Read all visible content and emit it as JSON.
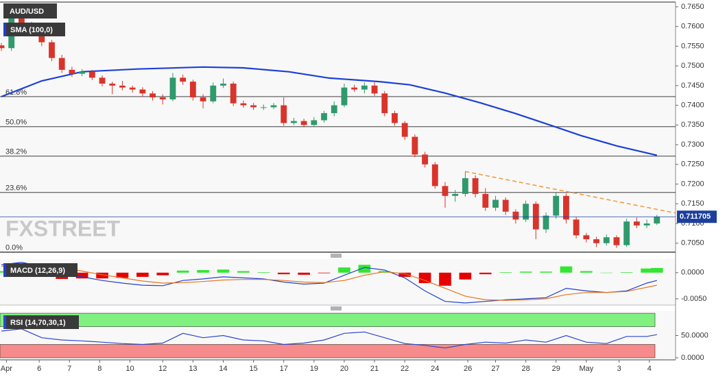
{
  "chart_data": [
    {
      "type": "candlestick",
      "title": "AUD/USD",
      "x": [
        0,
        2,
        4,
        6,
        8,
        10,
        12,
        14,
        16,
        18,
        20,
        22,
        24,
        26,
        28,
        30,
        32,
        34,
        36,
        38,
        40,
        42,
        44,
        46,
        48,
        50,
        52,
        54,
        56,
        58,
        60,
        62,
        64,
        66,
        68,
        70,
        72,
        74,
        76,
        78,
        80,
        82,
        84,
        86,
        88,
        90,
        92,
        94,
        96,
        98,
        100,
        102,
        104,
        106,
        108,
        110,
        112,
        114,
        116,
        118,
        120,
        122,
        124,
        126,
        128,
        130
      ],
      "open": [
        0.7552,
        0.7545,
        0.764,
        0.76,
        0.7585,
        0.756,
        0.752,
        0.749,
        0.748,
        0.7485,
        0.747,
        0.7455,
        0.745,
        0.7445,
        0.744,
        0.743,
        0.742,
        0.7415,
        0.747,
        0.746,
        0.742,
        0.741,
        0.745,
        0.7455,
        0.7405,
        0.74,
        0.7395,
        0.7395,
        0.74,
        0.7355,
        0.736,
        0.735,
        0.7362,
        0.738,
        0.74,
        0.7445,
        0.744,
        0.745,
        0.743,
        0.738,
        0.7355,
        0.732,
        0.7275,
        0.725,
        0.7195,
        0.717,
        0.7175,
        0.7215,
        0.7175,
        0.714,
        0.716,
        0.713,
        0.711,
        0.715,
        0.7085,
        0.712,
        0.717,
        0.711,
        0.707,
        0.706,
        0.705,
        0.7065,
        0.7045,
        0.7105,
        0.7095,
        0.71
      ],
      "high": [
        0.7558,
        0.7655,
        0.7648,
        0.7612,
        0.7592,
        0.7566,
        0.7528,
        0.7498,
        0.7492,
        0.749,
        0.7476,
        0.746,
        0.7462,
        0.745,
        0.7446,
        0.7436,
        0.7428,
        0.7482,
        0.7478,
        0.7465,
        0.7428,
        0.7458,
        0.7468,
        0.746,
        0.7412,
        0.7406,
        0.7402,
        0.7406,
        0.742,
        0.7368,
        0.7366,
        0.737,
        0.7386,
        0.741,
        0.7455,
        0.7452,
        0.7458,
        0.7458,
        0.7436,
        0.7386,
        0.736,
        0.7326,
        0.7282,
        0.7256,
        0.7205,
        0.7185,
        0.7232,
        0.7222,
        0.719,
        0.717,
        0.7166,
        0.7136,
        0.7158,
        0.7156,
        0.7128,
        0.7178,
        0.7176,
        0.7116,
        0.7076,
        0.7066,
        0.7072,
        0.707,
        0.7112,
        0.7115,
        0.711,
        0.7122
      ],
      "low": [
        0.7538,
        0.7538,
        0.7592,
        0.7575,
        0.755,
        0.7512,
        0.7482,
        0.7472,
        0.7474,
        0.7464,
        0.7448,
        0.7428,
        0.7438,
        0.7432,
        0.7422,
        0.7412,
        0.7402,
        0.741,
        0.7452,
        0.7412,
        0.7392,
        0.7405,
        0.7444,
        0.7398,
        0.7394,
        0.7388,
        0.7388,
        0.739,
        0.7348,
        0.735,
        0.7344,
        0.7345,
        0.7356,
        0.7372,
        0.7395,
        0.7434,
        0.743,
        0.7424,
        0.7372,
        0.7348,
        0.7312,
        0.7268,
        0.7242,
        0.7188,
        0.714,
        0.7155,
        0.7168,
        0.7166,
        0.7132,
        0.7132,
        0.7122,
        0.71,
        0.7104,
        0.706,
        0.7076,
        0.7112,
        0.71,
        0.7062,
        0.7052,
        0.704,
        0.7044,
        0.7038,
        0.704,
        0.7088,
        0.7088,
        0.7096
      ],
      "close": [
        0.7545,
        0.764,
        0.76,
        0.7585,
        0.756,
        0.752,
        0.749,
        0.748,
        0.7485,
        0.747,
        0.7455,
        0.745,
        0.7445,
        0.744,
        0.743,
        0.742,
        0.7415,
        0.747,
        0.746,
        0.742,
        0.741,
        0.745,
        0.7455,
        0.7405,
        0.74,
        0.7395,
        0.7395,
        0.74,
        0.7355,
        0.736,
        0.735,
        0.7362,
        0.738,
        0.74,
        0.7445,
        0.744,
        0.745,
        0.743,
        0.738,
        0.7355,
        0.732,
        0.7275,
        0.725,
        0.7195,
        0.717,
        0.7175,
        0.7215,
        0.7175,
        0.714,
        0.716,
        0.713,
        0.711,
        0.715,
        0.7085,
        0.712,
        0.717,
        0.711,
        0.707,
        0.706,
        0.705,
        0.7065,
        0.7045,
        0.7105,
        0.7095,
        0.71,
        0.7117
      ],
      "up_color": "#2f9a6c",
      "down_color": "#d9342b",
      "xlim": [
        -0.27,
        133.7
      ],
      "xticks": [
        {
          "value": 1,
          "label": "Apr"
        },
        {
          "value": 7.5,
          "label": "6"
        },
        {
          "value": 13.5,
          "label": "7"
        },
        {
          "value": 19.5,
          "label": "8"
        },
        {
          "value": 25.5,
          "label": "10"
        },
        {
          "value": 32,
          "label": "12"
        },
        {
          "value": 38,
          "label": "13"
        },
        {
          "value": 44,
          "label": "14"
        },
        {
          "value": 50,
          "label": "15"
        },
        {
          "value": 56,
          "label": "17"
        },
        {
          "value": 62,
          "label": "19"
        },
        {
          "value": 68,
          "label": "20"
        },
        {
          "value": 74,
          "label": "21"
        },
        {
          "value": 80,
          "label": "22"
        },
        {
          "value": 86,
          "label": "24"
        },
        {
          "value": 92.5,
          "label": "26"
        },
        {
          "value": 98,
          "label": "27"
        },
        {
          "value": 104,
          "label": "28"
        },
        {
          "value": 110,
          "label": "29"
        },
        {
          "value": 116,
          "label": "May"
        },
        {
          "value": 122.5,
          "label": "3"
        },
        {
          "value": 128.5,
          "label": "4"
        }
      ],
      "ylim": [
        0.7027,
        0.7662
      ],
      "yticks": [
        {
          "value": 0.765,
          "label": "0.7650"
        },
        {
          "value": 0.76,
          "label": "0.7600"
        },
        {
          "value": 0.755,
          "label": "0.7550"
        },
        {
          "value": 0.75,
          "label": "0.7500"
        },
        {
          "value": 0.745,
          "label": "0.7450"
        },
        {
          "value": 0.74,
          "label": "0.7400"
        },
        {
          "value": 0.735,
          "label": "0.7350"
        },
        {
          "value": 0.73,
          "label": "0.7300"
        },
        {
          "value": 0.725,
          "label": "0.7250"
        },
        {
          "value": 0.72,
          "label": "0.7200"
        },
        {
          "value": 0.715,
          "label": "0.7150"
        },
        {
          "value": 0.71,
          "label": "0.7100"
        },
        {
          "value": 0.705,
          "label": "0.7050"
        }
      ],
      "overlays": [
        {
          "name": "SMA (100,0)",
          "type": "line",
          "color": "#1c3fd8",
          "x": [
            0,
            8,
            16,
            27,
            40,
            48,
            57,
            65,
            75,
            81,
            88,
            95,
            102,
            109,
            115,
            122,
            130
          ],
          "values": [
            0.7422,
            0.7462,
            0.7485,
            0.7492,
            0.7497,
            0.7495,
            0.7485,
            0.7469,
            0.746,
            0.7452,
            0.7431,
            0.7406,
            0.7379,
            0.7349,
            0.7323,
            0.7297,
            0.7273
          ]
        },
        {
          "type": "trendline",
          "color": "#f59a3c",
          "dashed": true,
          "x": [
            92,
            133.7
          ],
          "values": [
            0.7232,
            0.71265
          ]
        }
      ],
      "levels": [
        {
          "label": "61.8%",
          "value": 0.7422
        },
        {
          "label": "50.0%",
          "value": 0.73457
        },
        {
          "label": "38.2%",
          "value": 0.72709
        },
        {
          "label": "23.6%",
          "value": 0.71787
        },
        {
          "label": "0.0%",
          "value": 0.70277
        }
      ],
      "last_price": 0.711705,
      "last_price_color": "#1c3f9e",
      "watermark": "FXSTREET"
    },
    {
      "type": "macd",
      "title": "MACD (12,26,9)",
      "x": [
        0,
        4,
        8,
        12,
        16,
        20,
        24,
        28,
        32,
        36,
        40,
        44,
        48,
        52,
        56,
        60,
        64,
        68,
        72,
        76,
        80,
        84,
        88,
        92,
        96,
        100,
        104,
        108,
        112,
        116,
        120,
        124,
        128,
        130
      ],
      "macd": [
        0.0015,
        0.002,
        0.0012,
        -0.0002,
        -0.0008,
        -0.0015,
        -0.002,
        -0.0024,
        -0.0025,
        -0.0015,
        -0.0012,
        -0.0008,
        -0.001,
        -0.0012,
        -0.0018,
        -0.0022,
        -0.002,
        -0.0005,
        0.001,
        0.0005,
        -0.001,
        -0.0035,
        -0.0055,
        -0.0058,
        -0.0055,
        -0.0052,
        -0.005,
        -0.0048,
        -0.003,
        -0.0035,
        -0.0038,
        -0.0035,
        -0.002,
        -0.0015
      ],
      "signal": [
        0.0012,
        0.0016,
        0.0016,
        0.001,
        0.0003,
        -0.0004,
        -0.001,
        -0.0016,
        -0.002,
        -0.0019,
        -0.0017,
        -0.0014,
        -0.0013,
        -0.0013,
        -0.0015,
        -0.0018,
        -0.0019,
        -0.0015,
        -0.0005,
        0.0002,
        -0.0002,
        -0.0015,
        -0.003,
        -0.0045,
        -0.0052,
        -0.0053,
        -0.0052,
        -0.005,
        -0.0042,
        -0.0038,
        -0.0038,
        -0.0036,
        -0.0028,
        -0.0024
      ],
      "histogram": [
        0.0003,
        0.0004,
        -0.0004,
        -0.0012,
        -0.0011,
        -0.0011,
        -0.001,
        -0.0008,
        -0.0005,
        0.0004,
        0.0005,
        0.0006,
        0.0003,
        0.0001,
        -0.0003,
        -0.0004,
        -0.0001,
        0.001,
        0.0015,
        0.0003,
        -0.0008,
        -0.002,
        -0.0025,
        -0.0013,
        -0.0003,
        0.0001,
        0.0002,
        0.0002,
        0.0012,
        0.0003,
        0,
        0.0001,
        0.0008,
        0.0009
      ],
      "macd_color": "#2040d0",
      "signal_color": "#e8741c",
      "up_color": "#33e633",
      "down_color": "#e60000",
      "ylim": [
        -0.0062,
        0.0026
      ],
      "yticks": [
        {
          "value": 0,
          "label": "0.0000"
        },
        {
          "value": -0.005,
          "label": "-0.0050"
        }
      ]
    },
    {
      "type": "rsi",
      "title": "RSI (14,70,30,1)",
      "x": [
        0,
        4,
        8,
        12,
        16,
        20,
        24,
        28,
        32,
        36,
        40,
        44,
        48,
        52,
        56,
        60,
        64,
        68,
        72,
        76,
        80,
        84,
        88,
        92,
        96,
        100,
        104,
        108,
        112,
        116,
        120,
        124,
        128,
        130
      ],
      "values": [
        60,
        65,
        45,
        40,
        38,
        35,
        32,
        30,
        33,
        55,
        45,
        50,
        40,
        38,
        30,
        33,
        40,
        55,
        58,
        45,
        32,
        28,
        22,
        30,
        35,
        33,
        40,
        35,
        50,
        35,
        32,
        48,
        48,
        52
      ],
      "color": "#2a45d4",
      "ylim": [
        -4.7,
        104.7
      ],
      "yticks": [
        {
          "value": 0,
          "label": "0.0000"
        },
        {
          "value": 50,
          "label": "50.0000"
        }
      ],
      "zones": [
        {
          "from": 70,
          "to": 100,
          "color": "#80f080"
        },
        {
          "from": 0,
          "to": 30,
          "color": "#f78a8a"
        }
      ]
    }
  ]
}
